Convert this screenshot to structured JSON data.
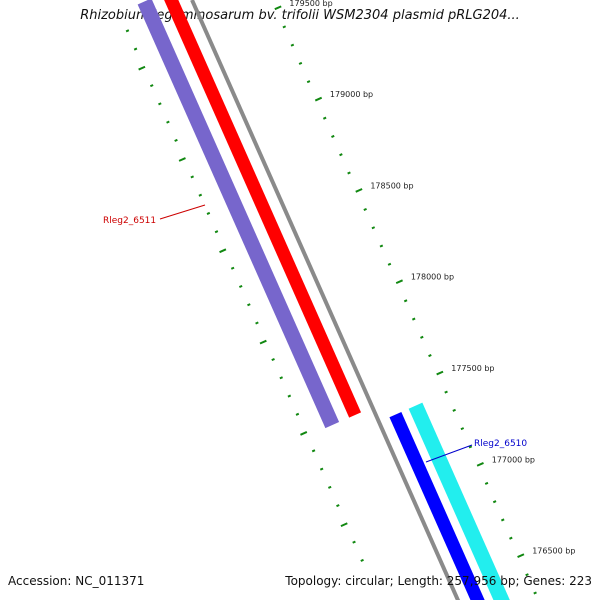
{
  "title": "Rhizobium leguminosarum bv. trifolii WSM2304 plasmid pRLG204...",
  "footer": {
    "accession": "Accession: NC_011371",
    "summary": "Topology: circular; Length: 257,956 bp; Genes: 223"
  },
  "colors": {
    "backbone": "#8a8a8a",
    "tick": "#118811",
    "forward_gene": "#ff0000",
    "forward_gene_light": "#7766cc",
    "reverse_gene": "#0000ff",
    "reverse_gene_light": "#22eeee",
    "label_forward": "#cc0000",
    "label_reverse": "#0000cc"
  },
  "ruler_labels": [
    {
      "text": "179500 bp",
      "pos": 179500
    },
    {
      "text": "179000 bp",
      "pos": 179000
    },
    {
      "text": "178500 bp",
      "pos": 178500
    },
    {
      "text": "178000 bp",
      "pos": 178000
    },
    {
      "text": "177500 bp",
      "pos": 177500
    },
    {
      "text": "177000 bp",
      "pos": 177000
    },
    {
      "text": "176500 bp",
      "pos": 176500
    }
  ],
  "genes": [
    {
      "name": "Rleg2_6511",
      "strand": "forward",
      "start": 177480,
      "end": 179800
    },
    {
      "name": "Rleg2_6510",
      "strand": "reverse",
      "start": 176300,
      "end": 177400
    }
  ]
}
